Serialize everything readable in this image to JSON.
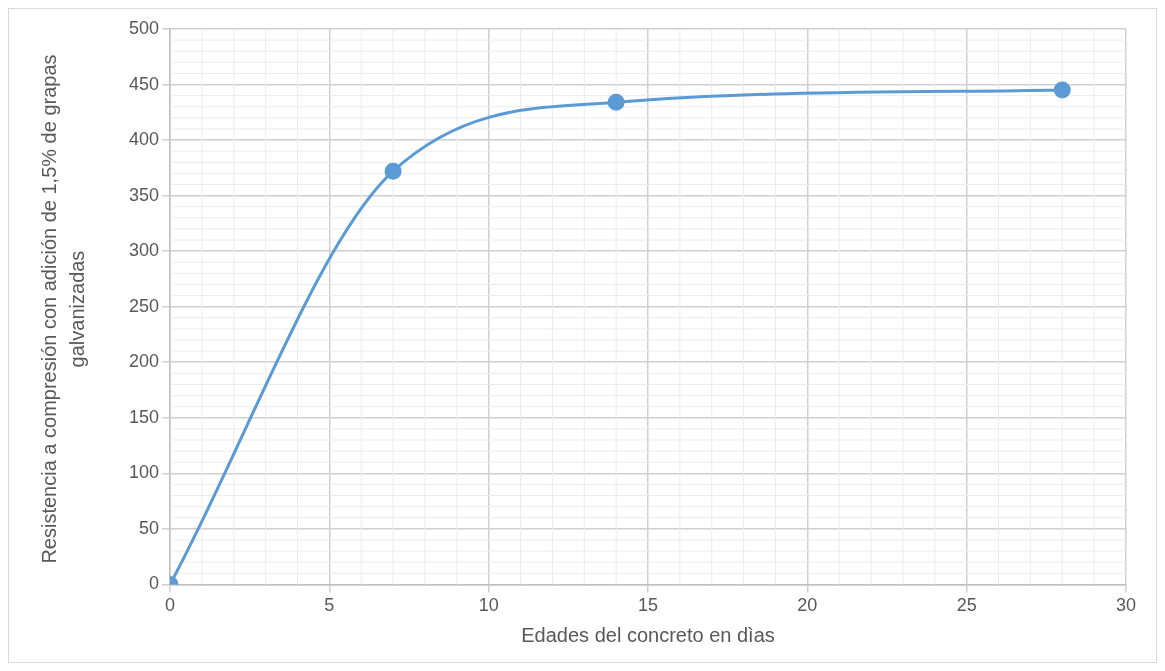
{
  "chart_data": {
    "type": "line",
    "xlabel": "Edades del concreto en dìas",
    "ylabel": "Resistencia a compresión con adición de 1,5% de grapas galvanizadas",
    "x": [
      0,
      7,
      14,
      28
    ],
    "series": [
      {
        "color": "#5b9bd5",
        "values": [
          0,
          372,
          434,
          445
        ]
      }
    ],
    "xlim": [
      0,
      30
    ],
    "xticks": [
      0,
      5,
      10,
      15,
      20,
      25,
      30
    ],
    "ylim": [
      0,
      500
    ],
    "yticks": [
      0,
      50,
      100,
      150,
      200,
      250,
      300,
      350,
      400,
      450,
      500
    ],
    "grid": true,
    "marker": "circle",
    "line_style": "solid",
    "legend": false
  }
}
